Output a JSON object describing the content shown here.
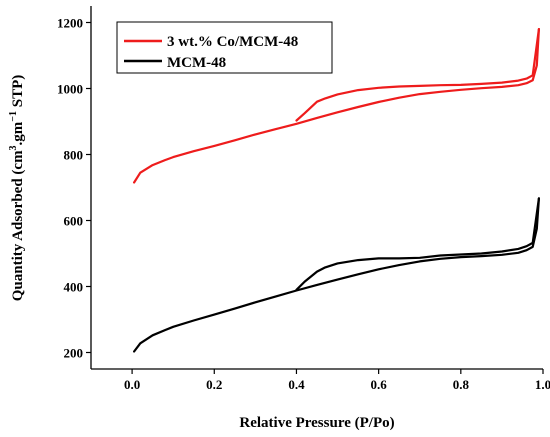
{
  "chart_data": {
    "type": "line",
    "xlabel": "Relative Pressure (P/Po)",
    "ylabel_parts": [
      "Quantity Adsorbed (cm",
      "3",
      ".gm",
      "−1",
      " STP)"
    ],
    "xlim": [
      -0.1,
      1.0
    ],
    "ylim": [
      150,
      1250
    ],
    "x_ticks": [
      0.0,
      0.2,
      0.4,
      0.6,
      0.8,
      1.0
    ],
    "x_tick_labels": [
      "0.0",
      "0.2",
      "0.4",
      "0.6",
      "0.8",
      "1.0"
    ],
    "y_ticks": [
      200,
      400,
      600,
      800,
      1000,
      1200
    ],
    "y_tick_labels": [
      "200",
      "400",
      "600",
      "800",
      "1000",
      "1200"
    ],
    "grid": false,
    "legend_position": "top-left",
    "series": [
      {
        "name": "3 wt.% Co/MCM-48",
        "color": "#ee1c1c",
        "adsorption": {
          "x": [
            0.005,
            0.02,
            0.05,
            0.08,
            0.1,
            0.15,
            0.2,
            0.25,
            0.3,
            0.35,
            0.4,
            0.45,
            0.5,
            0.55,
            0.6,
            0.65,
            0.7,
            0.75,
            0.8,
            0.85,
            0.9,
            0.94,
            0.96,
            0.975,
            0.985,
            0.99
          ],
          "y": [
            715,
            745,
            768,
            783,
            792,
            810,
            826,
            843,
            861,
            877,
            893,
            911,
            928,
            944,
            959,
            972,
            983,
            990,
            996,
            1001,
            1005,
            1010,
            1016,
            1025,
            1070,
            1180
          ]
        },
        "desorption": {
          "x": [
            0.99,
            0.975,
            0.96,
            0.94,
            0.9,
            0.85,
            0.8,
            0.75,
            0.7,
            0.65,
            0.6,
            0.55,
            0.5,
            0.47,
            0.45,
            0.42,
            0.4
          ],
          "y": [
            1180,
            1040,
            1030,
            1024,
            1018,
            1014,
            1011,
            1010,
            1008,
            1006,
            1002,
            995,
            982,
            970,
            960,
            925,
            903
          ]
        }
      },
      {
        "name": "MCM-48",
        "color": "#000000",
        "adsorption": {
          "x": [
            0.005,
            0.02,
            0.05,
            0.08,
            0.1,
            0.15,
            0.2,
            0.25,
            0.3,
            0.35,
            0.4,
            0.45,
            0.5,
            0.55,
            0.6,
            0.65,
            0.7,
            0.75,
            0.8,
            0.85,
            0.9,
            0.94,
            0.96,
            0.975,
            0.985,
            0.99
          ],
          "y": [
            203,
            228,
            252,
            268,
            278,
            297,
            315,
            333,
            352,
            370,
            388,
            405,
            421,
            437,
            452,
            465,
            476,
            484,
            489,
            492,
            496,
            502,
            510,
            520,
            575,
            667
          ]
        },
        "desorption": {
          "x": [
            0.99,
            0.975,
            0.96,
            0.94,
            0.9,
            0.85,
            0.8,
            0.75,
            0.7,
            0.65,
            0.6,
            0.55,
            0.5,
            0.47,
            0.45,
            0.42,
            0.4
          ],
          "y": [
            667,
            532,
            522,
            514,
            506,
            500,
            497,
            494,
            487,
            485,
            485,
            480,
            470,
            458,
            445,
            415,
            390
          ]
        }
      }
    ]
  }
}
